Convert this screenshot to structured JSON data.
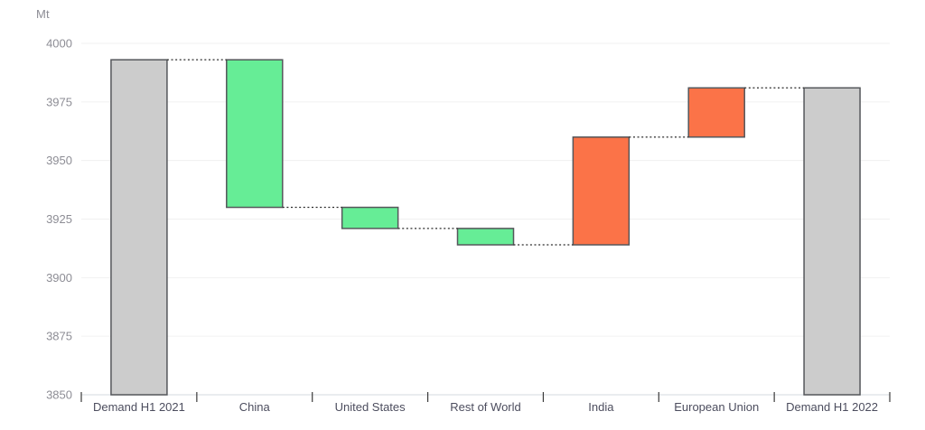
{
  "chart_data": {
    "type": "bar",
    "subtype": "waterfall",
    "title": "",
    "unit_label": "Mt",
    "ylabel": "Mt",
    "ylim": [
      3850,
      4000
    ],
    "yticks": [
      3850,
      3875,
      3900,
      3925,
      3950,
      3975,
      4000
    ],
    "grid": true,
    "legend": "none",
    "categories": [
      "Demand H1 2021",
      "China",
      "United States",
      "Rest of World",
      "India",
      "European Union",
      "Demand H1 2022"
    ],
    "bars": [
      {
        "label": "Demand H1 2021",
        "start": 3850,
        "end": 3993,
        "value": 3993,
        "role": "total"
      },
      {
        "label": "China",
        "start": 3993,
        "end": 3930,
        "change": -63,
        "role": "decrease"
      },
      {
        "label": "United States",
        "start": 3930,
        "end": 3921,
        "change": -9,
        "role": "decrease"
      },
      {
        "label": "Rest of World",
        "start": 3921,
        "end": 3914,
        "change": -7,
        "role": "decrease"
      },
      {
        "label": "India",
        "start": 3914,
        "end": 3960,
        "change": 46,
        "role": "increase"
      },
      {
        "label": "European Union",
        "start": 3960,
        "end": 3981,
        "change": 21,
        "role": "increase"
      },
      {
        "label": "Demand H1 2022",
        "start": 3850,
        "end": 3981,
        "value": 3981,
        "role": "total"
      }
    ],
    "colors": {
      "total": "#cccccc",
      "decrease": "#66ed96",
      "increase": "#fb7348",
      "bar_border": "#55575b",
      "connector": "#2b2b2b",
      "grid": "#f0f0f0",
      "axis_line": "#e3e5ea",
      "tick": "#3a3a3a",
      "category_label": "#4c4d5e",
      "ytick_label": "#8d8d95"
    }
  }
}
